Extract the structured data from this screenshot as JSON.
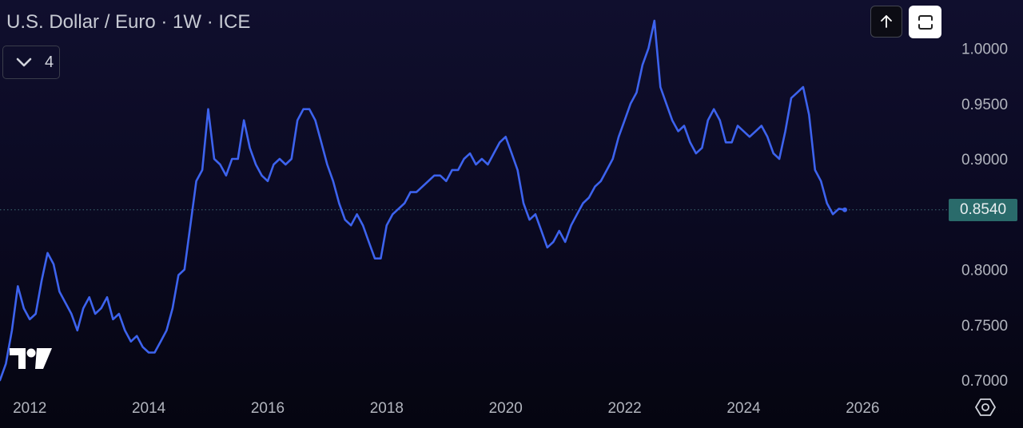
{
  "header": {
    "title": "U.S. Dollar / Euro · 1W · ICE",
    "indicator_count": "4"
  },
  "toolbar": {
    "up_icon": "arrow-up-icon",
    "fullscreen_icon": "fullscreen-icon"
  },
  "colors": {
    "line": "#3d63ee",
    "price_label_bg": "#2a6b6b",
    "axis_text": "#b2b5be"
  },
  "chart_data": {
    "type": "line",
    "title": "U.S. Dollar / Euro · 1W · ICE",
    "xlabel": "",
    "ylabel": "",
    "x_ticks": [
      "2012",
      "2014",
      "2016",
      "2018",
      "2020",
      "2022",
      "2024",
      "2026"
    ],
    "y_ticks": [
      "0.7000",
      "0.7500",
      "0.8000",
      "0.8500",
      "0.9000",
      "0.9500",
      "1.0000"
    ],
    "xlim": [
      2011.5,
      2026.6
    ],
    "ylim": [
      0.69,
      1.035
    ],
    "last_price": "0.8540",
    "grid": false,
    "series": [
      {
        "x": [
          2011.5,
          2011.6,
          2011.7,
          2011.8,
          2011.9,
          2012.0,
          2012.1,
          2012.2,
          2012.3,
          2012.4,
          2012.5,
          2012.6,
          2012.7,
          2012.8,
          2012.9,
          2013.0,
          2013.1,
          2013.2,
          2013.3,
          2013.4,
          2013.5,
          2013.6,
          2013.7,
          2013.8,
          2013.9,
          2014.0,
          2014.1,
          2014.2,
          2014.3,
          2014.4,
          2014.5,
          2014.6,
          2014.7,
          2014.8,
          2014.9,
          2015.0,
          2015.1,
          2015.2,
          2015.3,
          2015.4,
          2015.5,
          2015.6,
          2015.7,
          2015.8,
          2015.9,
          2016.0,
          2016.1,
          2016.2,
          2016.3,
          2016.4,
          2016.5,
          2016.6,
          2016.7,
          2016.8,
          2016.9,
          2017.0,
          2017.1,
          2017.2,
          2017.3,
          2017.4,
          2017.5,
          2017.6,
          2017.7,
          2017.8,
          2017.9,
          2018.0,
          2018.1,
          2018.2,
          2018.3,
          2018.4,
          2018.5,
          2018.6,
          2018.7,
          2018.8,
          2018.9,
          2019.0,
          2019.1,
          2019.2,
          2019.3,
          2019.4,
          2019.5,
          2019.6,
          2019.7,
          2019.8,
          2019.9,
          2020.0,
          2020.1,
          2020.2,
          2020.3,
          2020.4,
          2020.5,
          2020.6,
          2020.7,
          2020.8,
          2020.9,
          2021.0,
          2021.1,
          2021.2,
          2021.3,
          2021.4,
          2021.5,
          2021.6,
          2021.7,
          2021.8,
          2021.9,
          2022.0,
          2022.1,
          2022.2,
          2022.3,
          2022.4,
          2022.5,
          2022.6,
          2022.7,
          2022.8,
          2022.9,
          2023.0,
          2023.1,
          2023.2,
          2023.3,
          2023.4,
          2023.5,
          2023.6,
          2023.7,
          2023.8,
          2023.9,
          2024.0,
          2024.1,
          2024.2,
          2024.3,
          2024.4,
          2024.5,
          2024.6,
          2024.7,
          2024.8,
          2024.9,
          2025.0,
          2025.1,
          2025.2,
          2025.3,
          2025.4,
          2025.5,
          2025.6,
          2025.7
        ],
        "y": [
          0.7,
          0.715,
          0.745,
          0.785,
          0.765,
          0.755,
          0.76,
          0.79,
          0.815,
          0.805,
          0.78,
          0.77,
          0.76,
          0.745,
          0.765,
          0.775,
          0.76,
          0.765,
          0.775,
          0.755,
          0.76,
          0.745,
          0.735,
          0.74,
          0.73,
          0.725,
          0.725,
          0.735,
          0.745,
          0.765,
          0.795,
          0.8,
          0.84,
          0.88,
          0.89,
          0.945,
          0.9,
          0.895,
          0.885,
          0.9,
          0.9,
          0.935,
          0.91,
          0.895,
          0.885,
          0.88,
          0.895,
          0.9,
          0.895,
          0.9,
          0.935,
          0.945,
          0.945,
          0.935,
          0.915,
          0.895,
          0.88,
          0.86,
          0.845,
          0.84,
          0.85,
          0.84,
          0.825,
          0.81,
          0.81,
          0.84,
          0.85,
          0.855,
          0.86,
          0.87,
          0.87,
          0.875,
          0.88,
          0.885,
          0.885,
          0.88,
          0.89,
          0.89,
          0.9,
          0.905,
          0.895,
          0.9,
          0.895,
          0.905,
          0.915,
          0.92,
          0.905,
          0.89,
          0.86,
          0.845,
          0.85,
          0.835,
          0.82,
          0.825,
          0.835,
          0.825,
          0.84,
          0.85,
          0.86,
          0.865,
          0.875,
          0.88,
          0.89,
          0.9,
          0.92,
          0.935,
          0.95,
          0.96,
          0.985,
          1.0,
          1.025,
          0.965,
          0.95,
          0.935,
          0.925,
          0.93,
          0.915,
          0.905,
          0.91,
          0.935,
          0.945,
          0.935,
          0.915,
          0.915,
          0.93,
          0.925,
          0.92,
          0.925,
          0.93,
          0.92,
          0.905,
          0.9,
          0.925,
          0.955,
          0.96,
          0.965,
          0.94,
          0.89,
          0.88,
          0.86,
          0.85,
          0.855,
          0.854
        ]
      }
    ]
  }
}
